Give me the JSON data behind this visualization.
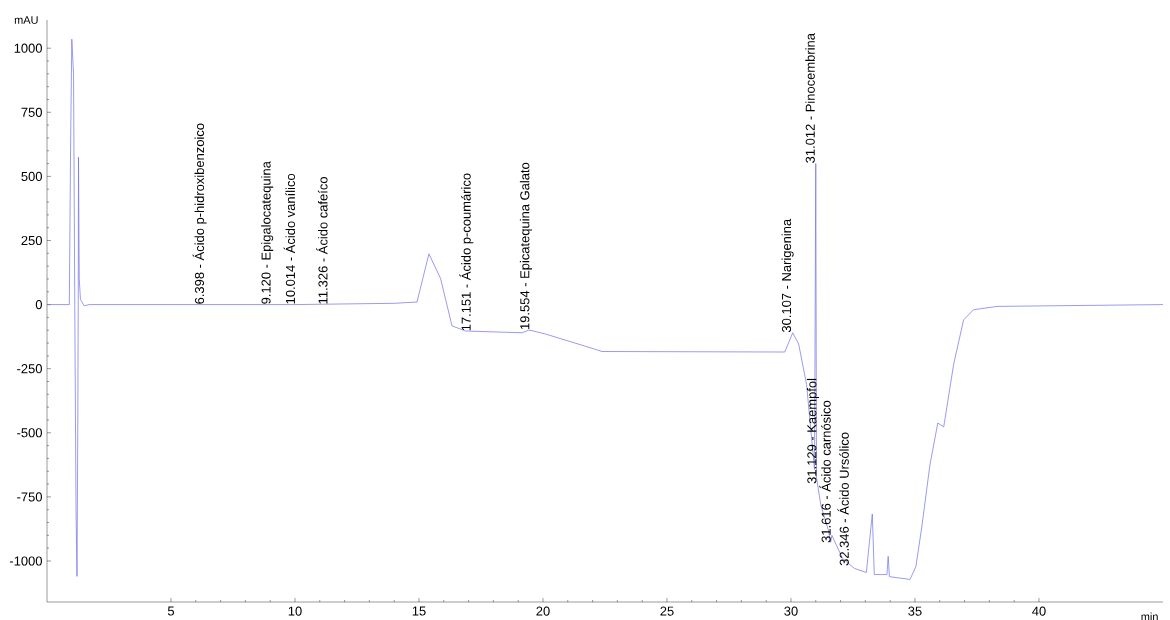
{
  "chart_data": {
    "type": "line",
    "xlabel": "min",
    "ylabel": "mAU",
    "color": "#6f6fe8",
    "x": [
      0,
      0.9,
      0.95,
      1.0,
      1.07,
      1.12,
      1.17,
      1.21,
      1.24,
      1.26,
      1.27,
      1.3,
      1.35,
      1.5,
      1.7,
      6,
      10,
      14,
      14.92,
      15.4,
      15.87,
      16.33,
      16.88,
      19.15,
      19.44,
      20.11,
      22.13,
      22.38,
      29.75,
      30.07,
      30.31,
      30.63,
      30.95,
      31.0,
      31.03,
      31.21,
      31.51,
      31.6,
      31.65,
      32.08,
      32.56,
      33.04,
      33.28,
      33.36,
      33.87,
      33.92,
      33.97,
      34.8,
      35.04,
      35.28,
      35.6,
      35.92,
      36.16,
      36.56,
      36.96,
      37.36,
      38.33,
      45
    ],
    "values": [
      0,
      0,
      600,
      1035,
      900,
      0,
      -800,
      -1060,
      -500,
      0,
      575,
      100,
      20,
      -5,
      0,
      0,
      0,
      5,
      10,
      198,
      102,
      -83,
      -103,
      -110,
      -99,
      -115,
      -175,
      -183,
      -185,
      -110,
      -154,
      -312,
      -643,
      550,
      -675,
      -785,
      -880,
      -927,
      -900,
      -990,
      -1029,
      -1045,
      -817,
      -1053,
      -1053,
      -982,
      -1061,
      -1072,
      -1021,
      -864,
      -627,
      -462,
      -477,
      -233,
      -60,
      -20,
      -7,
      0
    ],
    "xlim": [
      0,
      45
    ],
    "ylim": [
      -1160,
      1110
    ],
    "xticks": [
      5,
      10,
      15,
      20,
      25,
      30,
      35,
      40
    ],
    "yticks": [
      -1000,
      -750,
      -500,
      -250,
      0,
      250,
      500,
      750,
      1000
    ],
    "annotations": [
      {
        "text": "6.398 - Ácido p-hidroxibenzoico",
        "x": 6.398,
        "y": 0
      },
      {
        "text": "9.120 - Epigalocatequina",
        "x": 9.12,
        "y": 0
      },
      {
        "text": "10.014 - Ácido vanílico",
        "x": 10.014,
        "y": 0
      },
      {
        "text": "11.326 - Ácido cafeíco",
        "x": 11.326,
        "y": 0
      },
      {
        "text": "17.151 - Ácido p-coumárico",
        "x": 17.151,
        "y": -105
      },
      {
        "text": "19.554 - Epicatequina Galato",
        "x": 19.554,
        "y": -100
      },
      {
        "text": "30.107 - Narigenina",
        "x": 30.107,
        "y": -110
      },
      {
        "text": "31.012 - Pinocembrina",
        "x": 31.012,
        "y": 550
      },
      {
        "text": "31.129 - Kaempfol",
        "x": 31.129,
        "y": -700
      },
      {
        "text": "31.616 - Ácido carnósico",
        "x": 31.616,
        "y": -930
      },
      {
        "text": "32.346 - Ácido Ursólico",
        "x": 32.346,
        "y": -1020
      }
    ]
  }
}
